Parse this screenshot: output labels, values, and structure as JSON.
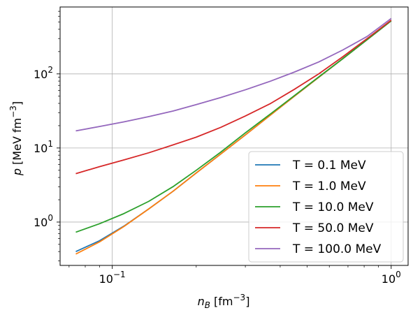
{
  "chart_data": {
    "type": "line",
    "xscale": "log",
    "yscale": "log",
    "xlim": [
      0.065,
      1.15
    ],
    "ylim": [
      0.26,
      800
    ],
    "grid": true,
    "legend_position": "lower-right",
    "xlabel": {
      "main": "n",
      "sub": "B",
      "rest": " [fm",
      "sup": "−3",
      "close": "]"
    },
    "ylabel": {
      "main": "p",
      "rest": " [MeV fm",
      "sup": "−3",
      "close": "]"
    },
    "x_ticks": [
      {
        "value": 0.1,
        "base": "10",
        "exp": "−1"
      },
      {
        "value": 1.0,
        "base": "10",
        "exp": "0"
      }
    ],
    "y_ticks": [
      {
        "value": 1,
        "base": "10",
        "exp": "0"
      },
      {
        "value": 10,
        "base": "10",
        "exp": "1"
      },
      {
        "value": 100,
        "base": "10",
        "exp": "2"
      }
    ],
    "x": [
      0.074,
      0.09,
      0.11,
      0.135,
      0.165,
      0.2,
      0.245,
      0.3,
      0.37,
      0.45,
      0.55,
      0.67,
      0.82,
      1.0
    ],
    "series": [
      {
        "name": "T = 0.1 MeV",
        "color": "#1f77b4",
        "values": [
          0.4,
          0.56,
          0.88,
          1.5,
          2.6,
          4.6,
          8.3,
          15,
          28,
          50,
          90,
          160,
          290,
          520
        ]
      },
      {
        "name": "T = 1.0 MeV",
        "color": "#ff7f0e",
        "values": [
          0.37,
          0.54,
          0.87,
          1.5,
          2.6,
          4.6,
          8.3,
          15,
          28,
          50,
          90,
          160,
          290,
          520
        ]
      },
      {
        "name": "T = 10.0 MeV",
        "color": "#2ca02c",
        "values": [
          0.73,
          0.95,
          1.3,
          1.9,
          3.0,
          5.0,
          8.8,
          16,
          29,
          51,
          91,
          160,
          290,
          520
        ]
      },
      {
        "name": "T = 50.0 MeV",
        "color": "#d62728",
        "values": [
          4.5,
          5.6,
          6.9,
          8.6,
          11,
          14,
          19,
          27,
          40,
          62,
          100,
          170,
          300,
          530
        ]
      },
      {
        "name": "T = 100.0 MeV",
        "color": "#9467bd",
        "values": [
          17,
          19.5,
          22.5,
          26.5,
          31.5,
          38.5,
          48,
          61,
          80,
          106,
          145,
          210,
          320,
          560
        ]
      }
    ]
  }
}
